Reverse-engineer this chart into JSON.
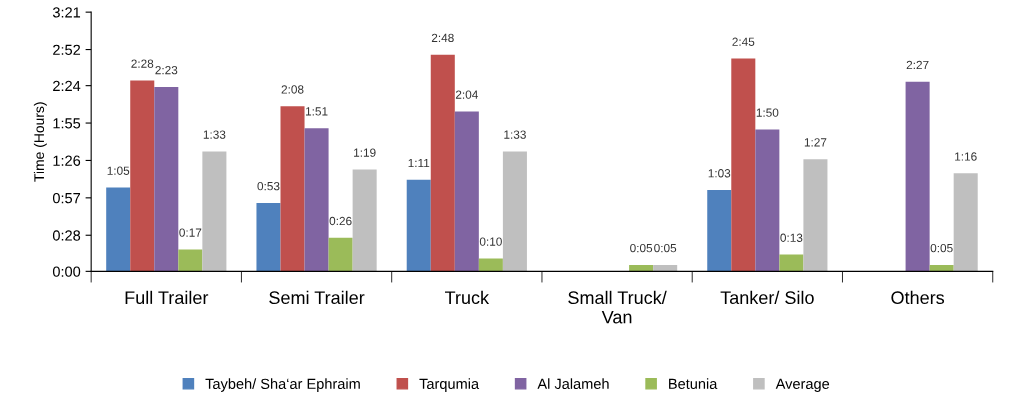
{
  "chart_data": {
    "type": "bar",
    "ylabel": "Time (Hours)",
    "categories": [
      "Full Trailer",
      "Semi Trailer",
      "Truck",
      "Small Truck/\nVan",
      "Tanker/ Silo",
      "Others"
    ],
    "series": [
      {
        "name": "Taybeh/ Sha‘ar Ephraim",
        "color": "#4f81bd",
        "values": [
          65,
          53,
          71,
          null,
          63,
          null
        ],
        "value_labels": [
          "1:05",
          "0:53",
          "1:11",
          null,
          "1:03",
          null
        ]
      },
      {
        "name": "Tarqumia",
        "color": "#c0504d",
        "values": [
          148,
          128,
          168,
          null,
          165,
          null
        ],
        "value_labels": [
          "2:28",
          "2:08",
          "2:48",
          null,
          "2:45",
          null
        ]
      },
      {
        "name": "Al Jalameh",
        "color": "#8064a2",
        "values": [
          143,
          111,
          124,
          null,
          110,
          147
        ],
        "value_labels": [
          "2:23",
          "1:51",
          "2:04",
          null,
          "1:50",
          "2:27"
        ]
      },
      {
        "name": "Betunia",
        "color": "#9bbb59",
        "values": [
          17,
          26,
          10,
          5,
          13,
          5
        ],
        "value_labels": [
          "0:17",
          "0:26",
          "0:10",
          "0:05",
          "0:13",
          "0:05"
        ]
      },
      {
        "name": "Average",
        "color": "#bfbfbf",
        "values": [
          93,
          79,
          93,
          5,
          87,
          76
        ],
        "value_labels": [
          "1:33",
          "1:19",
          "1:33",
          "0:05",
          "1:27",
          "1:16"
        ]
      }
    ],
    "ylim": [
      0,
      201
    ],
    "yticks": [
      {
        "value": 0,
        "label": "0:00"
      },
      {
        "value": 28,
        "label": "0:28"
      },
      {
        "value": 57,
        "label": "0:57"
      },
      {
        "value": 86,
        "label": "1:26"
      },
      {
        "value": 115,
        "label": "1:55"
      },
      {
        "value": 144,
        "label": "2:24"
      },
      {
        "value": 172,
        "label": "2:52"
      },
      {
        "value": 201,
        "label": "3:21"
      }
    ],
    "grid": false,
    "legend": "bottom"
  }
}
